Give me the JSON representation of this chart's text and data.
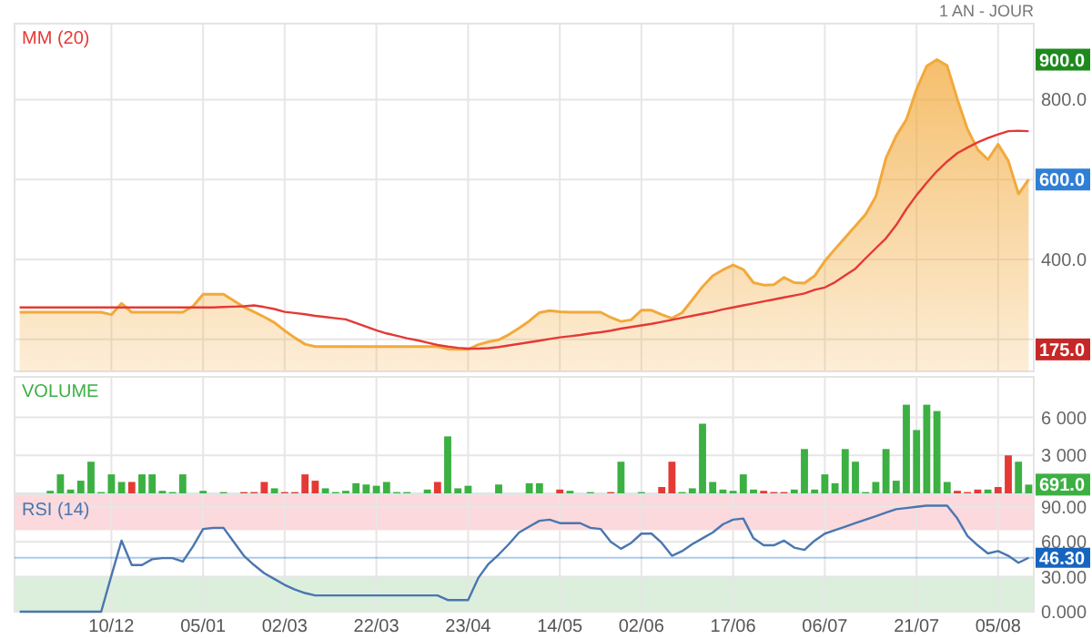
{
  "chart_data": [
    {
      "type": "area",
      "subtitle": "1 AN - JOUR",
      "tick_labels": "y",
      "grid": true,
      "categories": [
        null,
        null,
        null,
        null,
        null,
        null,
        null,
        null,
        null,
        null,
        null,
        null,
        null,
        null,
        null,
        null,
        null,
        null,
        null,
        null,
        null,
        null,
        null,
        null,
        null,
        null,
        null,
        null,
        null,
        null,
        null,
        null,
        null,
        null,
        null,
        null,
        null,
        null,
        null,
        null,
        null,
        null,
        null,
        null,
        null,
        null,
        null,
        null,
        null,
        null,
        null,
        null,
        null,
        null,
        null,
        null,
        null,
        null,
        null,
        null,
        null,
        null,
        null,
        null,
        null,
        null,
        null,
        null,
        null,
        null,
        null,
        null,
        null,
        null,
        null,
        null,
        null,
        null,
        null,
        null,
        null,
        null,
        null,
        null,
        null,
        null,
        null,
        null,
        null,
        null,
        null,
        null,
        null,
        null,
        null,
        null,
        null,
        null,
        null,
        null
      ],
      "series": [
        {
          "color": "#f2a93b",
          "values": [
            268,
            268,
            268,
            268,
            268,
            268,
            268,
            268,
            268,
            262,
            290,
            268,
            268,
            268,
            268,
            268,
            268,
            283,
            313,
            313,
            313,
            297,
            281,
            269,
            256,
            242,
            222,
            204,
            188,
            182,
            182,
            182,
            182,
            182,
            182,
            182,
            182,
            182,
            182,
            182,
            182,
            182,
            176,
            175,
            175,
            187,
            194,
            199,
            212,
            228,
            246,
            267,
            272,
            269,
            268,
            268,
            268,
            268,
            255,
            245,
            249,
            273,
            273,
            262,
            253,
            267,
            299,
            332,
            359,
            374,
            386,
            375,
            342,
            336,
            337,
            355,
            342,
            341,
            359,
            396,
            426,
            455,
            484,
            513,
            557,
            654,
            709,
            750,
            826,
            884,
            900,
            885,
            801,
            726,
            675,
            650,
            688,
            647,
            564,
            600
          ]
        },
        {
          "name": "MM (20)",
          "type": "line",
          "color": "#e53935",
          "values": [
            280,
            280,
            280,
            280,
            280,
            280,
            280,
            280,
            280,
            280,
            280,
            280,
            280,
            280,
            280,
            280,
            280,
            280,
            280,
            280,
            281,
            282,
            283,
            285,
            281,
            276,
            269,
            266,
            263,
            259,
            256,
            253,
            250,
            241,
            232,
            223,
            215,
            209,
            203,
            198,
            192,
            186,
            182,
            179,
            177,
            177,
            178,
            181,
            185,
            189,
            193,
            197,
            201,
            205,
            208,
            211,
            215,
            218,
            222,
            227,
            231,
            235,
            239,
            244,
            249,
            254,
            259,
            264,
            269,
            275,
            280,
            285,
            290,
            295,
            300,
            305,
            310,
            315,
            324,
            330,
            343,
            360,
            377,
            403,
            428,
            453,
            486,
            526,
            561,
            592,
            621,
            645,
            666,
            680,
            693,
            704,
            713,
            721,
            722,
            721
          ]
        }
      ],
      "ylim": [
        120,
        990
      ],
      "yticks": [
        {
          "value": 200,
          "label": null
        },
        {
          "value": 400,
          "label": "400.0"
        },
        {
          "value": 600,
          "label": null
        },
        {
          "value": 800,
          "label": "800.0"
        }
      ],
      "annotations": [
        {
          "text": "900.0",
          "y": 900
        },
        {
          "text": "600.0",
          "y": 600
        },
        {
          "text": "175.0",
          "y": 175
        }
      ]
    },
    {
      "type": "bar",
      "tick_labels": "y",
      "grid": true,
      "categories": [
        null,
        null,
        null,
        null,
        null,
        null,
        null,
        null,
        null,
        null,
        null,
        null,
        null,
        null,
        null,
        null,
        null,
        null,
        null,
        null,
        null,
        null,
        null,
        null,
        null,
        null,
        null,
        null,
        null,
        null,
        null,
        null,
        null,
        null,
        null,
        null,
        null,
        null,
        null,
        null,
        null,
        null,
        null,
        null,
        null,
        null,
        null,
        null,
        null,
        null,
        null,
        null,
        null,
        null,
        null,
        null,
        null,
        null,
        null,
        null,
        null,
        null,
        null,
        null,
        null,
        null,
        null,
        null,
        null,
        null,
        null,
        null,
        null,
        null,
        null,
        null,
        null,
        null,
        null,
        null,
        null,
        null,
        null,
        null,
        null,
        null,
        null,
        null,
        null,
        null,
        null,
        null,
        null,
        null,
        null,
        null,
        null,
        null,
        null,
        null
      ],
      "series": [
        {
          "name": "VOLUME",
          "color": "#3cb043",
          "values": [
            0,
            0,
            0,
            200,
            1500,
            300,
            1000,
            2500,
            100,
            1500,
            900,
            900,
            1500,
            1500,
            200,
            100,
            1500,
            0,
            200,
            0,
            100,
            0,
            100,
            100,
            900,
            400,
            100,
            100,
            1500,
            1000,
            400,
            100,
            200,
            800,
            700,
            600,
            900,
            100,
            100,
            0,
            300,
            900,
            4500,
            400,
            600,
            0,
            0,
            700,
            0,
            0,
            800,
            800,
            0,
            300,
            200,
            0,
            100,
            0,
            100,
            2500,
            0,
            100,
            0,
            500,
            2500,
            100,
            400,
            5500,
            900,
            300,
            200,
            1500,
            300,
            200,
            100,
            100,
            300,
            3500,
            300,
            1500,
            800,
            3500,
            2500,
            100,
            900,
            3500,
            1000,
            7000,
            5000,
            7000,
            6500,
            900,
            200,
            100,
            300,
            300,
            500,
            3000,
            2500,
            691
          ],
          "colors": [
            "#3cb043",
            "#3cb043",
            "#3cb043",
            "#3cb043",
            "#3cb043",
            "#3cb043",
            "#3cb043",
            "#3cb043",
            "#3cb043",
            "#3cb043",
            "#3cb043",
            "#e53935",
            "#3cb043",
            "#3cb043",
            "#3cb043",
            "#3cb043",
            "#3cb043",
            "#3cb043",
            "#3cb043",
            "#3cb043",
            "#3cb043",
            "#3cb043",
            "#e53935",
            "#e53935",
            "#e53935",
            "#3cb043",
            "#e53935",
            "#e53935",
            "#e53935",
            "#e53935",
            "#3cb043",
            "#3cb043",
            "#3cb043",
            "#3cb043",
            "#3cb043",
            "#3cb043",
            "#3cb043",
            "#3cb043",
            "#3cb043",
            "#3cb043",
            "#3cb043",
            "#e53935",
            "#3cb043",
            "#3cb043",
            "#3cb043",
            "#3cb043",
            "#3cb043",
            "#3cb043",
            "#3cb043",
            "#3cb043",
            "#3cb043",
            "#3cb043",
            "#3cb043",
            "#e53935",
            "#3cb043",
            "#3cb043",
            "#3cb043",
            "#3cb043",
            "#e53935",
            "#3cb043",
            "#3cb043",
            "#3cb043",
            "#3cb043",
            "#e53935",
            "#e53935",
            "#3cb043",
            "#3cb043",
            "#3cb043",
            "#3cb043",
            "#3cb043",
            "#3cb043",
            "#3cb043",
            "#3cb043",
            "#e53935",
            "#e53935",
            "#e53935",
            "#3cb043",
            "#3cb043",
            "#3cb043",
            "#3cb043",
            "#3cb043",
            "#3cb043",
            "#3cb043",
            "#3cb043",
            "#3cb043",
            "#3cb043",
            "#3cb043",
            "#3cb043",
            "#3cb043",
            "#3cb043",
            "#3cb043",
            "#3cb043",
            "#e53935",
            "#e53935",
            "#e53935",
            "#3cb043",
            "#e53935",
            "#e53935",
            "#3cb043",
            "#3cb043"
          ]
        }
      ],
      "ylim": [
        0,
        9200
      ],
      "yticks": [
        {
          "value": 3000,
          "label": "3 000"
        },
        {
          "value": 6000,
          "label": "6 000"
        }
      ],
      "annotations": [
        {
          "text": "691.0",
          "y": 691
        }
      ]
    },
    {
      "type": "line",
      "grid": true,
      "categories": [
        null,
        null,
        null,
        null,
        null,
        null,
        null,
        null,
        null,
        "10/12",
        null,
        null,
        null,
        null,
        null,
        null,
        null,
        null,
        "05/01",
        null,
        null,
        null,
        null,
        null,
        null,
        null,
        "02/03",
        null,
        null,
        null,
        null,
        null,
        null,
        null,
        null,
        "22/03",
        null,
        null,
        null,
        null,
        null,
        null,
        null,
        null,
        "23/04",
        null,
        null,
        null,
        null,
        null,
        null,
        null,
        null,
        "14/05",
        null,
        null,
        null,
        null,
        null,
        null,
        null,
        "02/06",
        null,
        null,
        null,
        null,
        null,
        null,
        null,
        null,
        "17/06",
        null,
        null,
        null,
        null,
        null,
        null,
        null,
        null,
        "06/07",
        null,
        null,
        null,
        null,
        null,
        null,
        null,
        null,
        "21/07",
        null,
        null,
        null,
        null,
        null,
        null,
        null,
        "05/08",
        null,
        null,
        null
      ],
      "series": [
        {
          "name": "RSI (14)",
          "color": "#4a76b0",
          "values": [
            0,
            0,
            0,
            0,
            0,
            0,
            0,
            0,
            0,
            31,
            61,
            40,
            40,
            45,
            46,
            46,
            43,
            56,
            71,
            72,
            72,
            60,
            48,
            40,
            33,
            28,
            23,
            19,
            16,
            14,
            14,
            14,
            14,
            14,
            14,
            14,
            14,
            14,
            14,
            14,
            14,
            14,
            10,
            10,
            10,
            29,
            41,
            49,
            58,
            68,
            73,
            78,
            79,
            76,
            76,
            76,
            72,
            71,
            60,
            54,
            59,
            67,
            67,
            59,
            48,
            52,
            58,
            63,
            68,
            75,
            79,
            80,
            63,
            57,
            57,
            61,
            55,
            53,
            61,
            67,
            70,
            73,
            76,
            79,
            82,
            85,
            88,
            89,
            90,
            91,
            91,
            91,
            80,
            65,
            57,
            50,
            52,
            48,
            42,
            46.3
          ]
        }
      ],
      "ylim": [
        0,
        100
      ],
      "yticks": [
        {
          "value": 0,
          "label": "0.000"
        },
        {
          "value": 30,
          "label": "30.00"
        },
        {
          "value": 60,
          "label": "60.00"
        },
        {
          "value": 90,
          "label": "90.00"
        }
      ],
      "bands": [
        {
          "axis": "y",
          "from": 70,
          "to": 100,
          "color": "#fbd9dc"
        },
        {
          "axis": "y",
          "from": 0,
          "to": 30,
          "color": "#dcefdc"
        }
      ],
      "ref_lines": [
        {
          "axis": "y",
          "value": 46.3,
          "label": "46.30",
          "color": "#1565c0"
        }
      ]
    }
  ]
}
